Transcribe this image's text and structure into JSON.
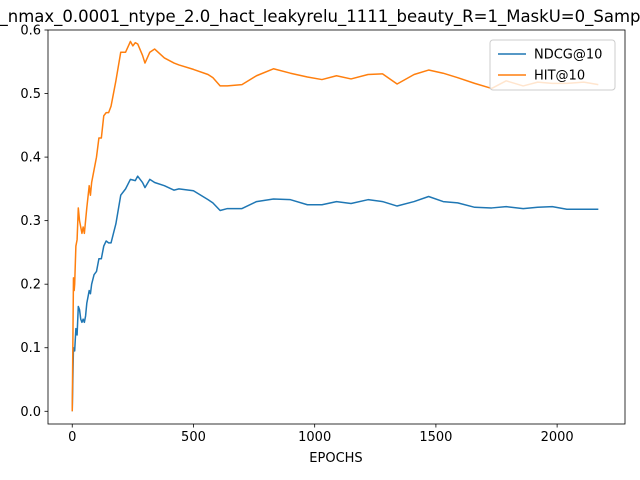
{
  "chart_data": {
    "type": "line",
    "title": "_nmax_0.0001_ntype_2.0_hact_leakyrelu_1111_beauty_R=1_MaskU=0_Samp",
    "xlabel": "EPOCHS",
    "ylabel": "",
    "xlim": [
      -100,
      2280
    ],
    "ylim": [
      -0.02,
      0.6
    ],
    "xticks": [
      0,
      500,
      1000,
      1500,
      2000
    ],
    "yticks": [
      0.0,
      0.1,
      0.2,
      0.3,
      0.4,
      0.5,
      0.6
    ],
    "xtick_labels": [
      "0",
      "500",
      "1000",
      "1500",
      "2000"
    ],
    "ytick_labels": [
      "0.0",
      "0.1",
      "0.2",
      "0.3",
      "0.4",
      "0.5",
      "0.6"
    ],
    "grid": false,
    "legend_position": "top-right",
    "series": [
      {
        "name": "NDCG@10",
        "color": "#1f77b4",
        "x": [
          0,
          5,
          10,
          15,
          20,
          25,
          30,
          35,
          40,
          45,
          50,
          55,
          60,
          70,
          75,
          80,
          90,
          100,
          110,
          120,
          130,
          140,
          150,
          160,
          170,
          180,
          200,
          220,
          240,
          260,
          270,
          290,
          300,
          320,
          340,
          380,
          420,
          440,
          500,
          560,
          580,
          610,
          640,
          700,
          760,
          830,
          900,
          970,
          1030,
          1090,
          1150,
          1220,
          1280,
          1340,
          1410,
          1470,
          1530,
          1590,
          1660,
          1730,
          1790,
          1860,
          1920,
          1980,
          2040,
          2110,
          2170
        ],
        "y": [
          0.0,
          0.1,
          0.095,
          0.13,
          0.12,
          0.165,
          0.16,
          0.145,
          0.14,
          0.145,
          0.14,
          0.15,
          0.17,
          0.19,
          0.185,
          0.2,
          0.215,
          0.22,
          0.24,
          0.24,
          0.26,
          0.268,
          0.265,
          0.265,
          0.28,
          0.295,
          0.34,
          0.35,
          0.365,
          0.363,
          0.37,
          0.36,
          0.352,
          0.365,
          0.36,
          0.355,
          0.348,
          0.35,
          0.347,
          0.333,
          0.328,
          0.316,
          0.319,
          0.319,
          0.33,
          0.334,
          0.333,
          0.325,
          0.325,
          0.33,
          0.327,
          0.333,
          0.33,
          0.323,
          0.33,
          0.338,
          0.33,
          0.328,
          0.321,
          0.32,
          0.322,
          0.319,
          0.321,
          0.322,
          0.318,
          0.318,
          0.318
        ]
      },
      {
        "name": "HIT@10",
        "color": "#ff7f0e",
        "x": [
          0,
          5,
          8,
          10,
          15,
          20,
          25,
          30,
          35,
          40,
          45,
          50,
          55,
          60,
          70,
          75,
          80,
          90,
          100,
          110,
          120,
          130,
          140,
          150,
          160,
          170,
          180,
          200,
          210,
          220,
          240,
          250,
          260,
          270,
          290,
          300,
          320,
          340,
          380,
          420,
          440,
          500,
          560,
          580,
          610,
          640,
          700,
          760,
          830,
          900,
          970,
          1030,
          1090,
          1150,
          1220,
          1280,
          1340,
          1410,
          1470,
          1530,
          1590,
          1660,
          1730,
          1790,
          1860,
          1920,
          1980,
          2040,
          2110,
          2170
        ],
        "y": [
          0.0,
          0.21,
          0.19,
          0.2,
          0.26,
          0.27,
          0.32,
          0.3,
          0.29,
          0.28,
          0.29,
          0.28,
          0.3,
          0.32,
          0.355,
          0.34,
          0.36,
          0.38,
          0.4,
          0.43,
          0.43,
          0.465,
          0.47,
          0.47,
          0.48,
          0.5,
          0.52,
          0.565,
          0.565,
          0.565,
          0.582,
          0.575,
          0.58,
          0.578,
          0.56,
          0.548,
          0.565,
          0.57,
          0.556,
          0.548,
          0.545,
          0.538,
          0.53,
          0.525,
          0.512,
          0.512,
          0.514,
          0.528,
          0.539,
          0.532,
          0.526,
          0.522,
          0.528,
          0.523,
          0.53,
          0.531,
          0.515,
          0.53,
          0.537,
          0.532,
          0.525,
          0.516,
          0.508,
          0.52,
          0.512,
          0.518,
          0.516,
          0.516,
          0.518,
          0.514
        ]
      }
    ]
  }
}
